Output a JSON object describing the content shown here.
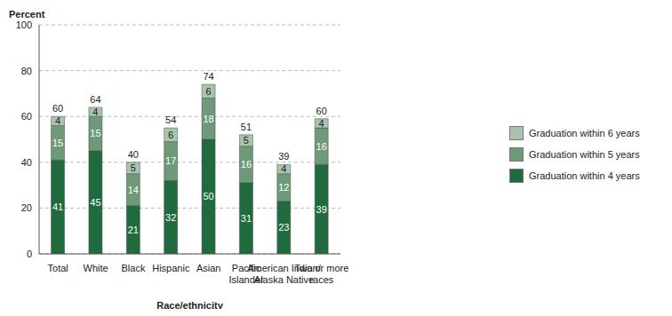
{
  "chart_data": {
    "type": "bar",
    "stacked": true,
    "data_labels": true,
    "grid": true,
    "legend": "right",
    "x_label": "Race/ethnicity",
    "y_label": "Percent",
    "categories": [
      "Total",
      "White",
      "Black",
      "Hispanic",
      "Asian",
      "Pacific Islander",
      "American Indian/Alaska Native",
      "Two or more races"
    ],
    "series": [
      {
        "name": "Graduation within 4 years",
        "color": "#1f6b3d",
        "values": [
          41,
          45,
          21,
          32,
          50,
          31,
          23,
          39
        ]
      },
      {
        "name": "Graduation within 5 years",
        "color": "#6f9a79",
        "values": [
          15,
          15,
          14,
          17,
          18,
          16,
          12,
          16
        ]
      },
      {
        "name": "Graduation within 6 years",
        "color": "#a9c4ae",
        "values": [
          4,
          4,
          5,
          6,
          6,
          5,
          4,
          4
        ]
      }
    ],
    "totals": [
      60,
      64,
      40,
      54,
      74,
      51,
      39,
      60
    ],
    "ylim": [
      0,
      100
    ],
    "yticks": [
      0,
      20,
      40,
      60,
      80,
      100
    ]
  }
}
